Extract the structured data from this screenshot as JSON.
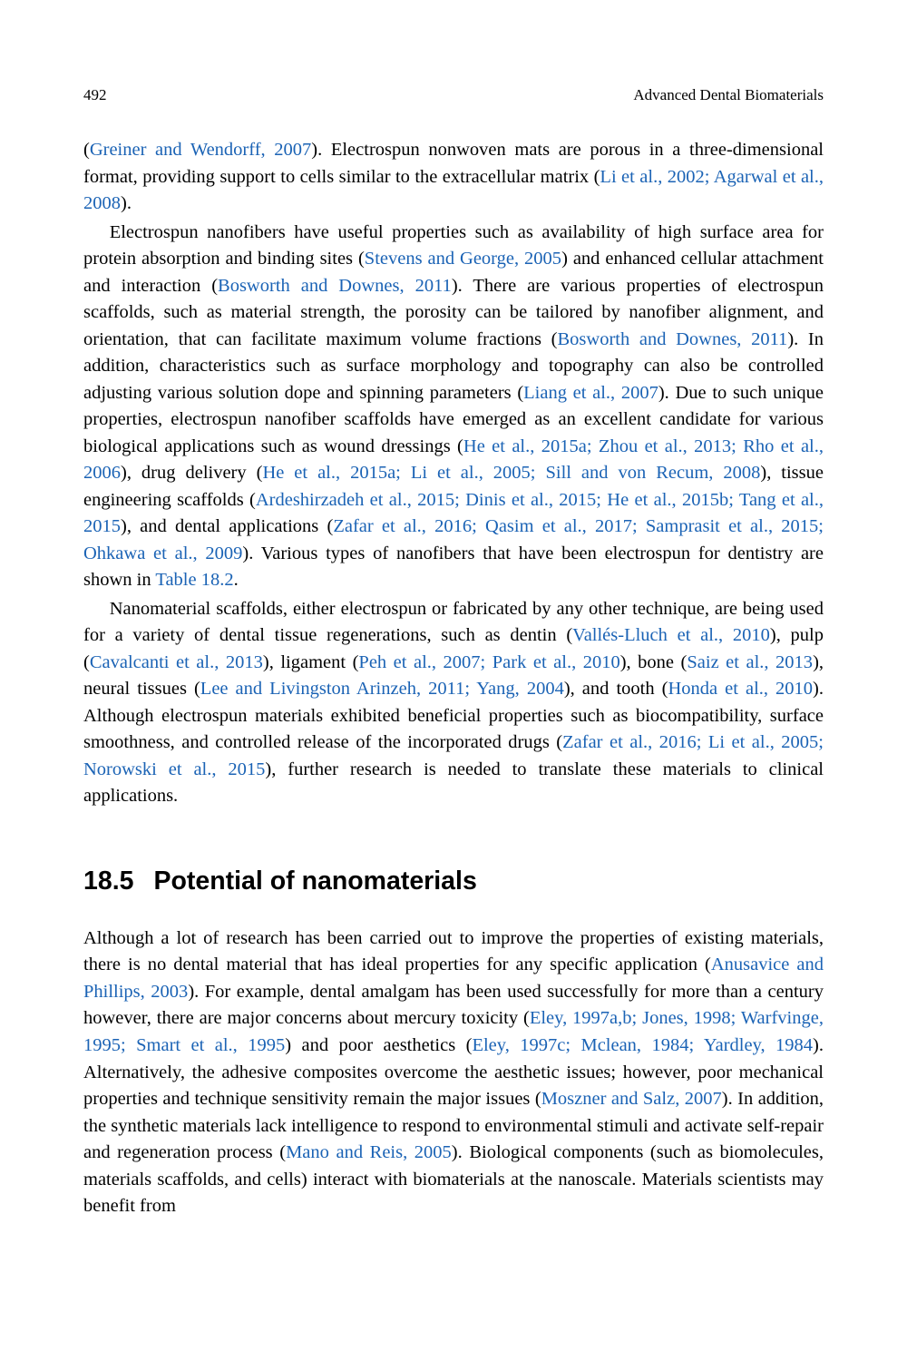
{
  "header": {
    "page_number": "492",
    "running_title": "Advanced Dental Biomaterials"
  },
  "refs": {
    "greiner2007": "Greiner and Wendorff, 2007",
    "li2002": "Li et al., 2002; Agarwal et al., 2008",
    "stevens2005": "Stevens and George, 2005",
    "bosworth2011": "Bosworth and Downes, 2011",
    "bosworth2011b": "Bosworth and Downes, 2011",
    "liang2007": "Liang et al., 2007",
    "he2015a": "He et al., 2015a; Zhou et al., 2013; Rho et al., 2006",
    "he2015a2": "He et al., 2015a; Li et al., 2005; Sill and von Recum, 2008",
    "ardeshirzadeh2015": "Ardeshirzadeh et al., 2015; Dinis et al., 2015; He et al., 2015b; Tang et al., 2015",
    "zafar2016": "Zafar et al., 2016; Qasim et al., 2017; Samprasit et al., 2015; Ohkawa et al., 2009",
    "table182": "Table 18.2",
    "valles2010": "Vallés-Lluch et al., 2010",
    "cavalcanti2013": "Cavalcanti et al., 2013",
    "peh2007": "Peh et al., 2007; Park et al., 2010",
    "saiz2013": "Saiz et al., 2013",
    "lee2011": "Lee and Livingston Arinzeh, 2011; Yang, 2004",
    "honda2010": "Honda et al., 2010",
    "zafar2016b": "Zafar et al., 2016; Li et al., 2005; Norowski et al., 2015",
    "anusavice2003": "Anusavice and Phillips, 2003",
    "eley1997": "Eley, 1997a,b; Jones, 1998; Warfvinge, 1995; Smart et al., 1995",
    "eley1997c": "Eley, 1997c; Mclean, 1984; Yardley, 1984",
    "moszner2007": "Moszner and Salz, 2007",
    "mano2005": "Mano and Reis, 2005"
  },
  "section": {
    "number": "18.5",
    "title": "Potential of nanomaterials"
  },
  "style": {
    "citation_color": "#1b63b5",
    "body_fontsize": 20.5,
    "heading_fontsize": 28.5,
    "font_family_body": "Georgia, serif",
    "font_family_heading": "Arial, sans-serif",
    "background_color": "#ffffff",
    "text_color": "#000000"
  }
}
